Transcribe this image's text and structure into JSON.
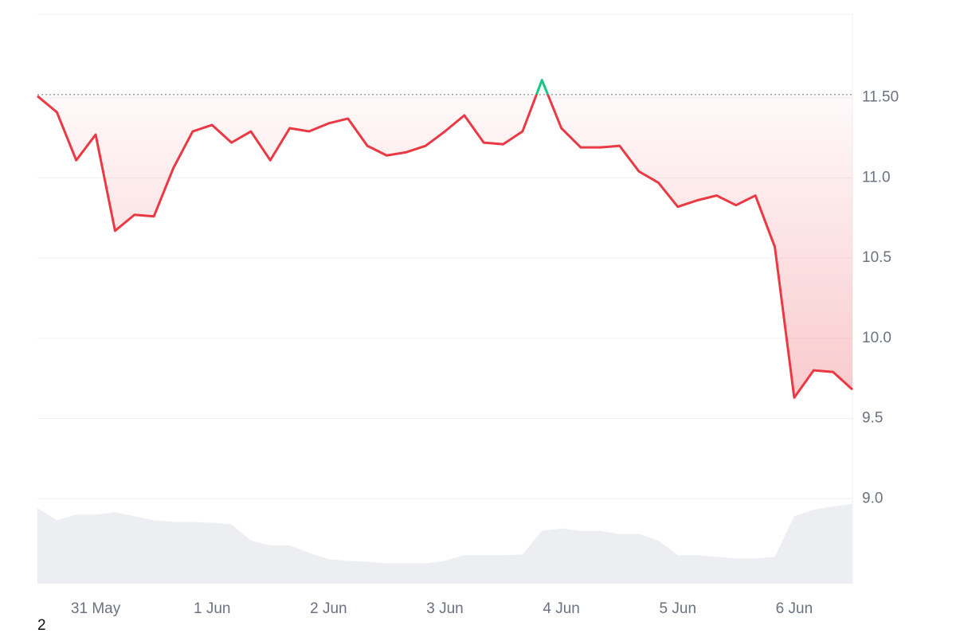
{
  "chart_data": {
    "type": "line",
    "categories": [
      null,
      null,
      null,
      "31 May",
      null,
      null,
      null,
      null,
      null,
      "1 Jun",
      null,
      null,
      null,
      null,
      null,
      "2 Jun",
      null,
      null,
      null,
      null,
      null,
      "3 Jun",
      null,
      null,
      null,
      null,
      null,
      "4 Jun",
      null,
      null,
      null,
      null,
      null,
      "5 Jun",
      null,
      null,
      null,
      null,
      null,
      "6 Jun",
      null,
      null,
      null
    ],
    "series": [
      {
        "color": "#ea3943",
        "up_color": "#16c784",
        "values": [
          11.51,
          11.41,
          11.11,
          11.27,
          10.67,
          10.77,
          10.76,
          11.06,
          11.29,
          11.33,
          11.22,
          11.29,
          11.11,
          11.31,
          11.29,
          11.34,
          11.37,
          11.2,
          11.14,
          11.16,
          11.2,
          11.29,
          11.39,
          11.22,
          11.21,
          11.29,
          11.61,
          11.31,
          11.19,
          11.19,
          11.2,
          11.04,
          10.97,
          10.82,
          10.86,
          10.89,
          10.83,
          10.89,
          10.57,
          9.63,
          9.8,
          9.79,
          9.68
        ]
      }
    ],
    "volume": {
      "color": "#eceef2",
      "values": [
        93,
        78,
        85,
        85,
        88,
        83,
        78,
        76,
        76,
        75,
        73,
        53,
        47,
        47,
        38,
        30,
        28,
        27,
        25,
        25,
        25,
        28,
        35,
        35,
        35,
        36,
        65,
        68,
        65,
        65,
        61,
        61,
        53,
        35,
        35,
        33,
        31,
        31,
        33,
        83,
        91,
        95,
        98
      ]
    },
    "baseline": 11.52,
    "ylim": [
      8.47,
      12.02
    ],
    "yticks": [
      {
        "value": 9.0,
        "label": "9.0"
      },
      9.5,
      {
        "value": 10.0,
        "label": "10.0"
      },
      10.5,
      {
        "value": 11.0,
        "label": "11.0"
      },
      {
        "value": 11.5,
        "label": "11.50"
      }
    ],
    "grid": true
  },
  "page_note": "2"
}
